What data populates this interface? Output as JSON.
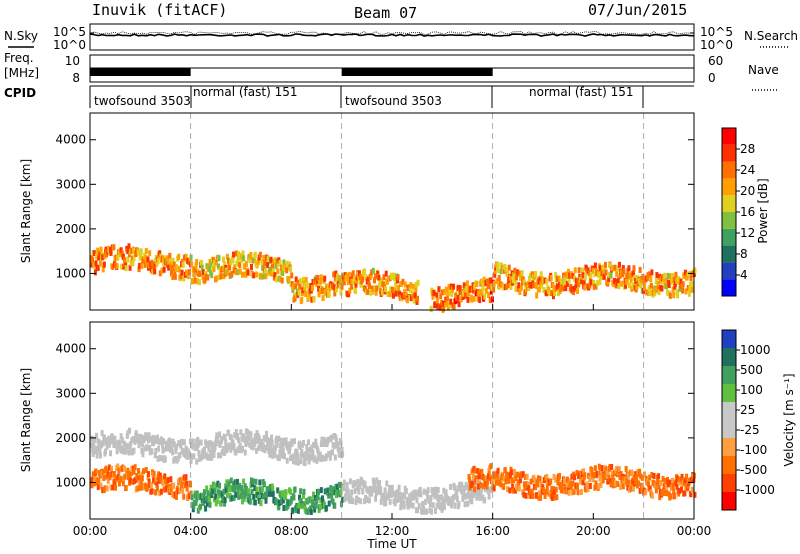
{
  "header": {
    "station": "Inuvik (fitACF)",
    "beam": "Beam 07",
    "date": "07/Jun/2015"
  },
  "side_labels": {
    "nsky": "N.Sky",
    "freq_line1": "Freq.",
    "freq_line2": "[MHz]",
    "cpid": "CPID",
    "nsearch": "N.Search",
    "nave": "Nave"
  },
  "noise_panel": {
    "left_ticks": [
      "10^5",
      "10^0"
    ],
    "right_ticks": [
      "10^5",
      "10^0"
    ]
  },
  "freq_panel": {
    "left_ticks": [
      "10",
      "8"
    ],
    "right_ticks": [
      "60",
      "0"
    ]
  },
  "cpid_panel": {
    "segments": [
      {
        "label": "twofsound 3503",
        "start_hour": 0,
        "end_hour": 4
      },
      {
        "label": "normal (fast) 151",
        "start_hour": 4,
        "end_hour": 10
      },
      {
        "label": "twofsound 3503",
        "start_hour": 10,
        "end_hour": 16
      },
      {
        "label": "normal (fast) 151",
        "start_hour": 16,
        "end_hour": 22
      }
    ]
  },
  "colors": {
    "power_scale": [
      "#0000ff",
      "#2040c0",
      "#207060",
      "#40a060",
      "#80c040",
      "#e0d020",
      "#ffa000",
      "#ff7000",
      "#ff3000",
      "#ff0000"
    ],
    "velocity_scale": [
      "#ff0000",
      "#ff4000",
      "#ff7000",
      "#ffa040",
      "#c8c8c8",
      "#c8c8c8",
      "#60c040",
      "#40a060",
      "#207060",
      "#2040c0"
    ],
    "ground_scatter": "#c0c0c0"
  },
  "chart_data": [
    {
      "type": "heatmap",
      "title": "Power",
      "xlabel": "",
      "ylabel": "Slant Range [km]",
      "x_ticks": [
        "00:00",
        "04:00",
        "08:00",
        "12:00",
        "16:00",
        "20:00",
        "00:00"
      ],
      "y_ticks": [
        "1000",
        "2000",
        "3000",
        "4000"
      ],
      "xlim_hours": [
        0,
        24
      ],
      "ylim_km": [
        180,
        4600
      ],
      "colorbar": {
        "label": "Power [dB]",
        "ticks": [
          "4",
          "8",
          "12",
          "16",
          "20",
          "24",
          "28"
        ],
        "range": [
          0,
          30
        ]
      },
      "features": [
        {
          "start_hour": 0,
          "end_hour": 4,
          "range_km": 1250,
          "power_db": 28
        },
        {
          "start_hour": 4,
          "end_hour": 8,
          "range_km": 1100,
          "power_db": 26
        },
        {
          "start_hour": 8,
          "end_hour": 10,
          "range_km": 750,
          "power_db": 28
        },
        {
          "start_hour": 10,
          "end_hour": 13,
          "range_km": 700,
          "power_db": 28
        },
        {
          "start_hour": 13.5,
          "end_hour": 16,
          "range_km": 500,
          "power_db": 30
        },
        {
          "start_hour": 16,
          "end_hour": 24,
          "range_km": 850,
          "power_db": 28
        }
      ]
    },
    {
      "type": "heatmap",
      "title": "Velocity",
      "xlabel": "Time UT",
      "ylabel": "Slant Range [km]",
      "x_ticks": [
        "00:00",
        "04:00",
        "08:00",
        "12:00",
        "16:00",
        "20:00",
        "00:00"
      ],
      "y_ticks": [
        "1000",
        "2000",
        "3000",
        "4000"
      ],
      "xlim_hours": [
        0,
        24
      ],
      "ylim_km": [
        180,
        4600
      ],
      "colorbar": {
        "label": "Velocity [m s⁻¹]",
        "ticks": [
          "1000",
          "500",
          "100",
          "25",
          "-25",
          "-100",
          "-500",
          "-1000"
        ]
      },
      "features": [
        {
          "start_hour": 0,
          "end_hour": 10,
          "range_km": 1800,
          "velocity": 0
        },
        {
          "start_hour": 0,
          "end_hour": 4,
          "range_km": 1000,
          "velocity": -300
        },
        {
          "start_hour": 4,
          "end_hour": 10,
          "range_km": 700,
          "velocity": 200
        },
        {
          "start_hour": 10,
          "end_hour": 16,
          "range_km": 700,
          "velocity": 0
        },
        {
          "start_hour": 15,
          "end_hour": 24,
          "range_km": 1000,
          "velocity": -500
        }
      ]
    }
  ]
}
